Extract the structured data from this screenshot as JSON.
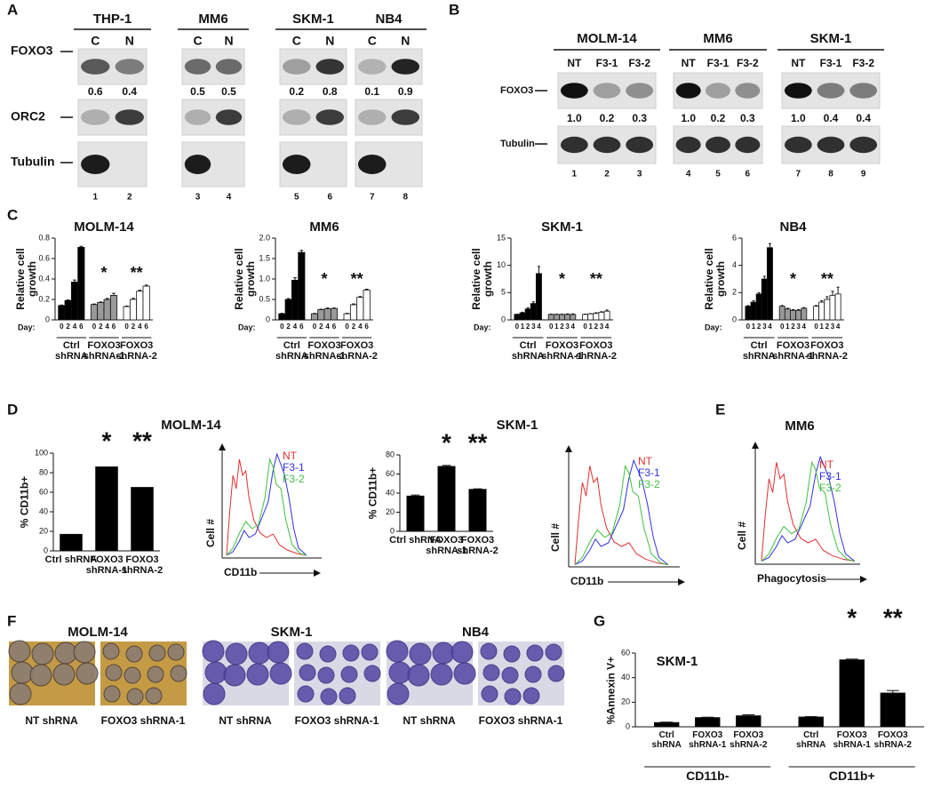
{
  "panel_a": {
    "letter": "A",
    "rows": [
      "FOXO3",
      "ORC2",
      "Tubulin"
    ],
    "cell_lines": [
      {
        "name": "THP-1",
        "lanes": [
          "C",
          "N"
        ],
        "foxo3_ratios": [
          "0.6",
          "0.4"
        ],
        "lane_numbers": [
          "1",
          "2"
        ]
      },
      {
        "name": "MM6",
        "lanes": [
          "C",
          "N"
        ],
        "foxo3_ratios": [
          "0.5",
          "0.5"
        ],
        "lane_numbers": [
          "3",
          "4"
        ]
      },
      {
        "name": "SKM-1",
        "lanes": [
          "C",
          "N"
        ],
        "foxo3_ratios": [
          "0.2",
          "0.8"
        ],
        "lane_numbers": [
          "5",
          "6"
        ]
      },
      {
        "name": "NB4",
        "lanes": [
          "C",
          "N"
        ],
        "foxo3_ratios": [
          "0.1",
          "0.9"
        ],
        "lane_numbers": [
          "7",
          "8"
        ]
      }
    ]
  },
  "panel_b": {
    "letter": "B",
    "rows": [
      "FOXO3",
      "Tubulin"
    ],
    "cell_lines": [
      {
        "name": "MOLM-14",
        "lanes": [
          "NT",
          "F3-1",
          "F3-2"
        ],
        "foxo3_ratios": [
          "1.0",
          "0.2",
          "0.3"
        ],
        "lane_numbers": [
          "1",
          "2",
          "3"
        ]
      },
      {
        "name": "MM6",
        "lanes": [
          "NT",
          "F3-1",
          "F3-2"
        ],
        "foxo3_ratios": [
          "1.0",
          "0.2",
          "0.3"
        ],
        "lane_numbers": [
          "4",
          "5",
          "6"
        ]
      },
      {
        "name": "SKM-1",
        "lanes": [
          "NT",
          "F3-1",
          "F3-2"
        ],
        "foxo3_ratios": [
          "1.0",
          "0.4",
          "0.4"
        ],
        "lane_numbers": [
          "7",
          "8",
          "9"
        ]
      }
    ]
  },
  "panel_c": {
    "letter": "C"
  },
  "panel_d": {
    "letter": "D",
    "histograms": [
      {
        "y_label": "Cell #",
        "x_label": "CD11b",
        "legend": [
          "NT",
          "F3-1",
          "F3-2"
        ]
      },
      {
        "y_label": "Cell #",
        "x_label": "CD11b",
        "legend": [
          "NT",
          "F3-1",
          "F3-2"
        ]
      }
    ]
  },
  "panel_e": {
    "letter": "E",
    "title": "MM6",
    "histogram": {
      "y_label": "Cell #",
      "x_label": "Phagocytosis",
      "legend": [
        "NT",
        "F3-1",
        "F3-2"
      ]
    }
  },
  "panel_f": {
    "letter": "F",
    "groups": [
      {
        "title": "MOLM-14",
        "captions": [
          "NT shRNA",
          "FOXO3 shRNA-1"
        ]
      },
      {
        "title": "SKM-1",
        "captions": [
          "NT shRNA",
          "FOXO3 shRNA-1"
        ]
      },
      {
        "title": "NB4",
        "captions": [
          "NT shRNA",
          "FOXO3 shRNA-1"
        ]
      }
    ]
  },
  "panel_g": {
    "letter": "G"
  },
  "chart_data": [
    {
      "type": "bar",
      "title": "MOLM-14",
      "y_label": "Relative cell growth",
      "x_label": "Day:",
      "categories": [
        "0",
        "2",
        "4",
        "6"
      ],
      "ylim": [
        0,
        0.8
      ],
      "yticks": [
        0,
        0.2,
        0.4,
        0.6,
        0.8
      ],
      "series": [
        {
          "name": "Ctrl shRNA",
          "color": "#000000",
          "values": [
            0.14,
            0.19,
            0.37,
            0.71
          ],
          "errors": [
            0.005,
            0.005,
            0.02,
            0.01
          ]
        },
        {
          "name": "FOXO3 shRNA-1",
          "color": "#999999",
          "values": [
            0.15,
            0.17,
            0.2,
            0.24
          ],
          "errors": [
            0.005,
            0.005,
            0.01,
            0.02
          ],
          "annotation": "*"
        },
        {
          "name": "FOXO3 shRNA-2",
          "color": "#ffffff",
          "values": [
            0.13,
            0.2,
            0.28,
            0.33
          ],
          "errors": [
            0.005,
            0.01,
            0.01,
            0.01
          ],
          "annotation": "**"
        }
      ]
    },
    {
      "type": "bar",
      "title": "MM6",
      "y_label": "Relative cell growth",
      "x_label": "Day:",
      "categories": [
        "0",
        "2",
        "4",
        "6"
      ],
      "ylim": [
        0,
        2
      ],
      "yticks": [
        0,
        0.5,
        {
          "value": 1,
          "label": "1.0"
        },
        1.5,
        {
          "value": 2,
          "label": "2.0"
        }
      ],
      "series": [
        {
          "name": "Ctrl shRNA",
          "color": "#000000",
          "values": [
            0.15,
            0.5,
            0.97,
            1.65
          ],
          "errors": [
            0.01,
            0.02,
            0.06,
            0.05
          ]
        },
        {
          "name": "FOXO3 shRNA-1",
          "color": "#999999",
          "values": [
            0.15,
            0.25,
            0.27,
            0.28
          ],
          "errors": [
            0.01,
            0.01,
            0.02,
            0.01
          ],
          "annotation": "*"
        },
        {
          "name": "FOXO3 shRNA-2",
          "color": "#ffffff",
          "values": [
            0.15,
            0.37,
            0.55,
            0.73
          ],
          "errors": [
            0.01,
            0.02,
            0.02,
            0.02
          ],
          "annotation": "**"
        }
      ]
    },
    {
      "type": "bar",
      "title": "SKM-1",
      "y_label": "Relative cell growth",
      "x_label": "Day:",
      "categories": [
        "0",
        "1",
        "2",
        "3",
        "4"
      ],
      "ylim": [
        0,
        15
      ],
      "yticks": [
        0,
        5,
        10,
        15
      ],
      "series": [
        {
          "name": "Ctrl shRNA",
          "color": "#000000",
          "values": [
            1,
            1.3,
            2,
            3,
            8.5
          ],
          "errors": [
            0.05,
            0.1,
            0.2,
            0.3,
            1.3
          ]
        },
        {
          "name": "FOXO3 shRNA-1",
          "color": "#999999",
          "values": [
            1,
            1,
            1,
            1,
            1
          ],
          "errors": [
            0.05,
            0.05,
            0.05,
            0.1,
            0.1
          ],
          "annotation": "*"
        },
        {
          "name": "FOXO3 shRNA-2",
          "color": "#ffffff",
          "values": [
            1,
            1.1,
            1.2,
            1.4,
            1.6
          ],
          "errors": [
            0.05,
            0.05,
            0.1,
            0.1,
            0.2
          ],
          "annotation": "**"
        }
      ]
    },
    {
      "type": "bar",
      "title": "NB4",
      "y_label": "Relative cell growth",
      "x_label": "Day:",
      "categories": [
        "0",
        "1",
        "2",
        "3",
        "4"
      ],
      "ylim": [
        0,
        6
      ],
      "yticks": [
        0,
        2,
        4,
        6
      ],
      "series": [
        {
          "name": "Ctrl shRNA",
          "color": "#000000",
          "values": [
            1,
            1.3,
            1.9,
            3,
            5.3
          ],
          "errors": [
            0.05,
            0.1,
            0.1,
            0.2,
            0.3
          ]
        },
        {
          "name": "FOXO3 shRNA-1",
          "color": "#999999",
          "values": [
            1,
            0.8,
            0.7,
            0.7,
            0.85
          ],
          "errors": [
            0.05,
            0.05,
            0.05,
            0.05,
            0.05
          ],
          "annotation": "*"
        },
        {
          "name": "FOXO3 shRNA-2",
          "color": "#ffffff",
          "values": [
            1,
            1.3,
            1.5,
            1.8,
            1.9
          ],
          "errors": [
            0.05,
            0.1,
            0.2,
            0.3,
            0.5
          ],
          "annotation": "**"
        }
      ]
    },
    {
      "type": "bar",
      "title": "MOLM-14",
      "y_label": "% CD11b+",
      "categories": [
        "Ctrl shRNA",
        "FOXO3 shRNA-1",
        "FOXO3 shRNA-2"
      ],
      "values": [
        17,
        86,
        65
      ],
      "annotations": [
        null,
        "*",
        "**"
      ],
      "color": "#000000",
      "ylim": [
        0,
        100
      ],
      "yticks": [
        0,
        20,
        40,
        60,
        80,
        100
      ]
    },
    {
      "type": "bar",
      "title": "SKM-1",
      "y_label": "% CD11b+",
      "categories": [
        "Ctrl shRNA",
        "FOXO3 shRNA-1",
        "FOXO3 shRNA-2"
      ],
      "values": [
        37,
        68,
        44
      ],
      "errors": [
        1,
        1,
        0.5
      ],
      "annotations": [
        null,
        "*",
        "**"
      ],
      "color": "#000000",
      "ylim": [
        0,
        80
      ],
      "yticks": [
        0,
        20,
        40,
        60,
        80
      ]
    },
    {
      "type": "bar",
      "title": "SKM-1",
      "y_label": "%Annexin V+",
      "categories": [
        "Ctrl shRNA",
        "FOXO3 shRNA-1",
        "FOXO3 shRNA-2"
      ],
      "ylim": [
        0,
        60
      ],
      "yticks": [
        0,
        20,
        40,
        60
      ],
      "series": [
        {
          "name": "CD11b-",
          "color": "#000000",
          "values": [
            3.5,
            7.5,
            9
          ],
          "errors": [
            0.3,
            0.3,
            0.8
          ]
        },
        {
          "name": "CD11b+",
          "color": "#000000",
          "values": [
            8,
            54.5,
            27.5
          ],
          "errors": [
            0.3,
            0.6,
            2
          ],
          "annotations": [
            null,
            "*",
            "**"
          ]
        }
      ]
    }
  ]
}
